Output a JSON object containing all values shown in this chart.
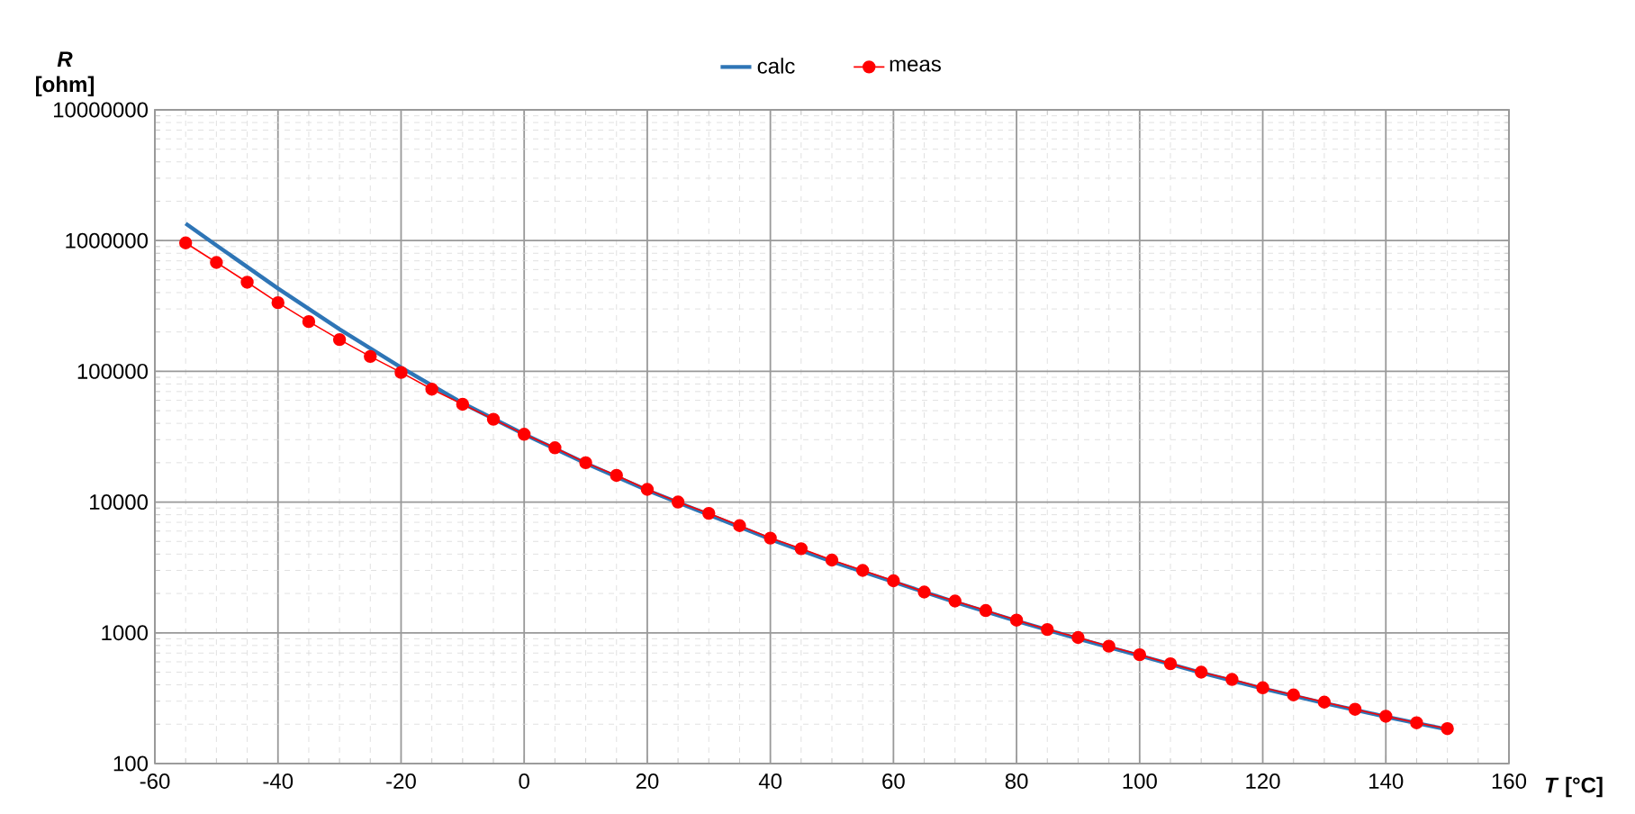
{
  "chart_data": {
    "type": "line",
    "xlabel": "*T* [°C]",
    "ylabel": "*R* [ohm]",
    "log": "y",
    "grid": true,
    "legend": "top",
    "xlim": [
      -60,
      160
    ],
    "xticks": [
      -60,
      -40,
      -20,
      0,
      20,
      40,
      60,
      80,
      100,
      120,
      140,
      160
    ],
    "ylim": [
      100,
      10000000
    ],
    "yticks": [
      100,
      1000,
      10000,
      100000,
      1000000,
      10000000
    ],
    "series": [
      {
        "name": "calc",
        "color": "#2e75b6",
        "marker": "none",
        "x": [
          -55,
          -50,
          -40,
          -30,
          -20,
          -10,
          0,
          10,
          20,
          30,
          40,
          50,
          60,
          70,
          80,
          90,
          100,
          110,
          120,
          130,
          140,
          150
        ],
        "values": [
          1350000,
          920000,
          430000,
          210000,
          107000,
          57000,
          33000,
          19800,
          12300,
          8000,
          5200,
          3500,
          2450,
          1720,
          1230,
          900,
          670,
          495,
          375,
          290,
          228,
          182
        ]
      },
      {
        "name": "meas",
        "color": "#ff0000",
        "marker": "circle",
        "x": [
          -55,
          -50,
          -45,
          -40,
          -35,
          -30,
          -25,
          -20,
          -15,
          -10,
          -5,
          0,
          5,
          10,
          15,
          20,
          25,
          30,
          35,
          40,
          45,
          50,
          55,
          60,
          65,
          70,
          75,
          80,
          85,
          90,
          95,
          100,
          105,
          110,
          115,
          120,
          125,
          130,
          135,
          140,
          145,
          150
        ],
        "values": [
          960000,
          680000,
          480000,
          335000,
          240000,
          175000,
          130000,
          98000,
          73000,
          56000,
          43000,
          33000,
          26000,
          20000,
          16000,
          12500,
          10000,
          8200,
          6600,
          5300,
          4400,
          3600,
          3000,
          2500,
          2050,
          1750,
          1480,
          1250,
          1060,
          920,
          790,
          680,
          580,
          500,
          440,
          380,
          335,
          295,
          260,
          230,
          205,
          185
        ]
      }
    ]
  }
}
